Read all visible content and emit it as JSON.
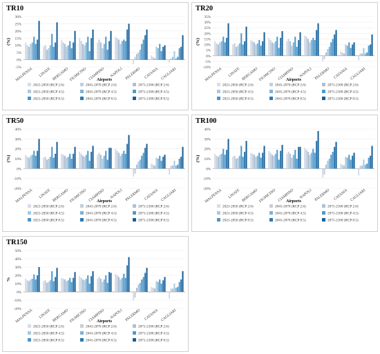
{
  "chart_data": [
    {
      "type": "bar",
      "title": "TR10",
      "xlabel": "Airports",
      "ylabel": "(%)",
      "ylim": [
        -5,
        30
      ],
      "yticks": [
        -5,
        0,
        5,
        10,
        15,
        20,
        25,
        30
      ],
      "categories": [
        "MALPENSA",
        "LINATE",
        "BERGAMO",
        "FIUMICINO",
        "CIAMPINO",
        "NAPOLI",
        "PALERMO",
        "CATANIA",
        "CAGLIARI"
      ],
      "series": [
        {
          "name": "2021-2050 (RCP 2.6)",
          "values": [
            12,
            9,
            14,
            15,
            12,
            16,
            -3,
            3,
            -2
          ]
        },
        {
          "name": "2041-2070 (RCP 2.6)",
          "values": [
            10,
            10,
            12,
            13,
            14,
            15,
            2,
            2,
            1
          ]
        },
        {
          "name": "2071-2100 (RCP 2.6)",
          "values": [
            9,
            7,
            11,
            11,
            12,
            14,
            4,
            1,
            2
          ]
        },
        {
          "name": "2021-2050 (RCP 4.5)",
          "values": [
            11,
            8,
            9,
            10,
            8,
            11,
            5,
            9,
            6
          ]
        },
        {
          "name": "2041-2070 (RCP 4.5)",
          "values": [
            12,
            10,
            10,
            12,
            11,
            13,
            7,
            8,
            1
          ]
        },
        {
          "name": "2071-2100 (RCP 4.5)",
          "values": [
            16,
            18,
            13,
            16,
            16,
            14,
            11,
            11,
            2
          ]
        },
        {
          "name": "2021-2050 (RCP 8.5)",
          "values": [
            11,
            9,
            8,
            6,
            7,
            13,
            14,
            6,
            8
          ]
        },
        {
          "name": "2041-2070 (RCP 8.5)",
          "values": [
            14,
            12,
            12,
            15,
            13,
            21,
            17,
            9,
            9
          ]
        },
        {
          "name": "2071-2100 (RCP 8.5)",
          "values": [
            27,
            26,
            20,
            21,
            20,
            25,
            21,
            10,
            17
          ]
        }
      ]
    },
    {
      "type": "bar",
      "title": "TR20",
      "xlabel": "Airports",
      "ylabel": "(%)",
      "ylim": [
        -10,
        35
      ],
      "yticks": [
        -10,
        -5,
        0,
        5,
        10,
        15,
        20,
        25,
        30,
        35
      ],
      "categories": [
        "MALPENSA",
        "LINATE",
        "BERGAMO",
        "FIUMICINO",
        "CIAMPINO",
        "NAPOLI",
        "PALERMO",
        "CATANIA",
        "CAGLIARI"
      ],
      "series": [
        {
          "name": "2021-2050 (RCP 2.6)",
          "values": [
            13,
            10,
            14,
            16,
            13,
            18,
            -5,
            4,
            -4
          ]
        },
        {
          "name": "2041-2070 (RCP 2.6)",
          "values": [
            11,
            11,
            13,
            14,
            15,
            17,
            -3,
            3,
            2
          ]
        },
        {
          "name": "2071-2100 (RCP 2.6)",
          "values": [
            10,
            8,
            12,
            12,
            13,
            15,
            3,
            2,
            2
          ]
        },
        {
          "name": "2021-2050 (RCP 4.5)",
          "values": [
            12,
            9,
            10,
            11,
            9,
            12,
            6,
            10,
            7
          ]
        },
        {
          "name": "2041-2070 (RCP 4.5)",
          "values": [
            13,
            11,
            11,
            13,
            12,
            14,
            8,
            9,
            2
          ]
        },
        {
          "name": "2071-2100 (RCP 4.5)",
          "values": [
            17,
            20,
            14,
            17,
            17,
            16,
            12,
            12,
            3
          ]
        },
        {
          "name": "2021-2050 (RCP 8.5)",
          "values": [
            12,
            10,
            9,
            7,
            8,
            14,
            15,
            7,
            9
          ]
        },
        {
          "name": "2041-2070 (RCP 8.5)",
          "values": [
            16,
            13,
            13,
            16,
            14,
            23,
            19,
            10,
            10
          ]
        },
        {
          "name": "2071-2100 (RCP 8.5)",
          "values": [
            29,
            26,
            21,
            22,
            21,
            29,
            23,
            12,
            19
          ]
        }
      ]
    },
    {
      "type": "bar",
      "title": "TR50",
      "xlabel": "Airports",
      "ylabel": "(%)",
      "ylim": [
        -20,
        40
      ],
      "yticks": [
        -20,
        -10,
        0,
        10,
        20,
        30,
        40
      ],
      "categories": [
        "MALPENSA",
        "LINATE",
        "BERGAMO",
        "FIUMICINO",
        "CIAMPINO",
        "NAPOLI",
        "PALERMO",
        "CATANIA",
        "CAGLIARI"
      ],
      "series": [
        {
          "name": "2021-2050 (RCP 2.6)",
          "values": [
            14,
            11,
            15,
            17,
            14,
            20,
            -8,
            5,
            -6
          ]
        },
        {
          "name": "2041-2070 (RCP 2.6)",
          "values": [
            12,
            12,
            14,
            15,
            16,
            18,
            -5,
            4,
            3
          ]
        },
        {
          "name": "2071-2100 (RCP 2.6)",
          "values": [
            11,
            9,
            13,
            13,
            14,
            16,
            4,
            3,
            3
          ]
        },
        {
          "name": "2021-2050 (RCP 4.5)",
          "values": [
            13,
            10,
            11,
            12,
            10,
            13,
            7,
            11,
            8
          ]
        },
        {
          "name": "2041-2070 (RCP 4.5)",
          "values": [
            14,
            12,
            12,
            14,
            13,
            15,
            9,
            10,
            3
          ]
        },
        {
          "name": "2071-2100 (RCP 4.5)",
          "values": [
            18,
            22,
            15,
            18,
            18,
            18,
            13,
            13,
            4
          ]
        },
        {
          "name": "2021-2050 (RCP 8.5)",
          "values": [
            13,
            11,
            10,
            8,
            9,
            15,
            16,
            8,
            10
          ]
        },
        {
          "name": "2041-2070 (RCP 8.5)",
          "values": [
            18,
            15,
            15,
            17,
            21,
            25,
            21,
            12,
            12
          ]
        },
        {
          "name": "2071-2100 (RCP 8.5)",
          "values": [
            30,
            27,
            22,
            23,
            21,
            34,
            25,
            14,
            22
          ]
        }
      ]
    },
    {
      "type": "bar",
      "title": "TR100",
      "xlabel": "Airports",
      "ylabel": "(%)",
      "ylim": [
        -20,
        40
      ],
      "yticks": [
        -20,
        -10,
        0,
        10,
        20,
        30,
        40
      ],
      "categories": [
        "MALPENSA",
        "LINATE",
        "BERGAMO",
        "FIUMICINO",
        "CIAMPINO",
        "NAPOLI",
        "PALERMO",
        "CATANIA",
        "CAGLIARI"
      ],
      "series": [
        {
          "name": "2021-2050 (RCP 2.6)",
          "values": [
            15,
            12,
            16,
            18,
            15,
            21,
            -9,
            5,
            -7
          ]
        },
        {
          "name": "2041-2070 (RCP 2.6)",
          "values": [
            13,
            13,
            15,
            16,
            17,
            19,
            -6,
            4,
            3
          ]
        },
        {
          "name": "2071-2100 (RCP 2.6)",
          "values": [
            12,
            10,
            14,
            14,
            15,
            17,
            4,
            3,
            3
          ]
        },
        {
          "name": "2021-2050 (RCP 4.5)",
          "values": [
            14,
            11,
            12,
            13,
            11,
            14,
            8,
            12,
            9
          ]
        },
        {
          "name": "2041-2070 (RCP 4.5)",
          "values": [
            15,
            13,
            13,
            15,
            14,
            16,
            10,
            11,
            4
          ]
        },
        {
          "name": "2071-2100 (RCP 4.5)",
          "values": [
            20,
            23,
            16,
            19,
            19,
            20,
            14,
            14,
            5
          ]
        },
        {
          "name": "2021-2050 (RCP 8.5)",
          "values": [
            14,
            12,
            11,
            9,
            10,
            16,
            17,
            9,
            11
          ]
        },
        {
          "name": "2041-2070 (RCP 8.5)",
          "values": [
            19,
            17,
            16,
            18,
            22,
            28,
            22,
            13,
            13
          ]
        },
        {
          "name": "2071-2100 (RCP 8.5)",
          "values": [
            30,
            28,
            23,
            24,
            22,
            38,
            27,
            16,
            23
          ]
        }
      ]
    },
    {
      "type": "bar",
      "title": "TR150",
      "xlabel": "Airports",
      "ylabel": "%",
      "ylim": [
        -20,
        50
      ],
      "yticks": [
        -20,
        -10,
        0,
        10,
        20,
        30,
        40,
        50
      ],
      "categories": [
        "MALPENSA",
        "LINATE",
        "BERGAMO",
        "FIUMICINO",
        "CIAMPINO",
        "NAPOLI",
        "PALERMO",
        "CATANIA",
        "CAGLIARI"
      ],
      "series": [
        {
          "name": "2021-2050 (RCP 2.6)",
          "values": [
            16,
            13,
            17,
            19,
            16,
            22,
            -10,
            6,
            -8
          ]
        },
        {
          "name": "2041-2070 (RCP 2.6)",
          "values": [
            14,
            14,
            16,
            17,
            18,
            20,
            -7,
            5,
            4
          ]
        },
        {
          "name": "2071-2100 (RCP 2.6)",
          "values": [
            13,
            11,
            15,
            15,
            16,
            18,
            5,
            4,
            4
          ]
        },
        {
          "name": "2021-2050 (RCP 4.5)",
          "values": [
            15,
            12,
            13,
            14,
            12,
            15,
            9,
            13,
            10
          ]
        },
        {
          "name": "2041-2070 (RCP 4.5)",
          "values": [
            16,
            14,
            14,
            16,
            15,
            17,
            11,
            12,
            5
          ]
        },
        {
          "name": "2071-2100 (RCP 4.5)",
          "values": [
            21,
            25,
            17,
            20,
            20,
            22,
            15,
            15,
            6
          ]
        },
        {
          "name": "2021-2050 (RCP 8.5)",
          "values": [
            15,
            13,
            12,
            10,
            11,
            17,
            18,
            10,
            12
          ]
        },
        {
          "name": "2041-2070 (RCP 8.5)",
          "values": [
            20,
            18,
            17,
            19,
            24,
            32,
            23,
            14,
            15
          ]
        },
        {
          "name": "2071-2100 (RCP 8.5)",
          "values": [
            30,
            29,
            24,
            25,
            23,
            42,
            29,
            18,
            25
          ]
        }
      ]
    }
  ],
  "series_colors": [
    "#d6dde8",
    "#c2cedd",
    "#aebfd3",
    "#a9c9e0",
    "#7fb2d6",
    "#4f9acb",
    "#4f94c6",
    "#2d79b2",
    "#1a5f96"
  ]
}
